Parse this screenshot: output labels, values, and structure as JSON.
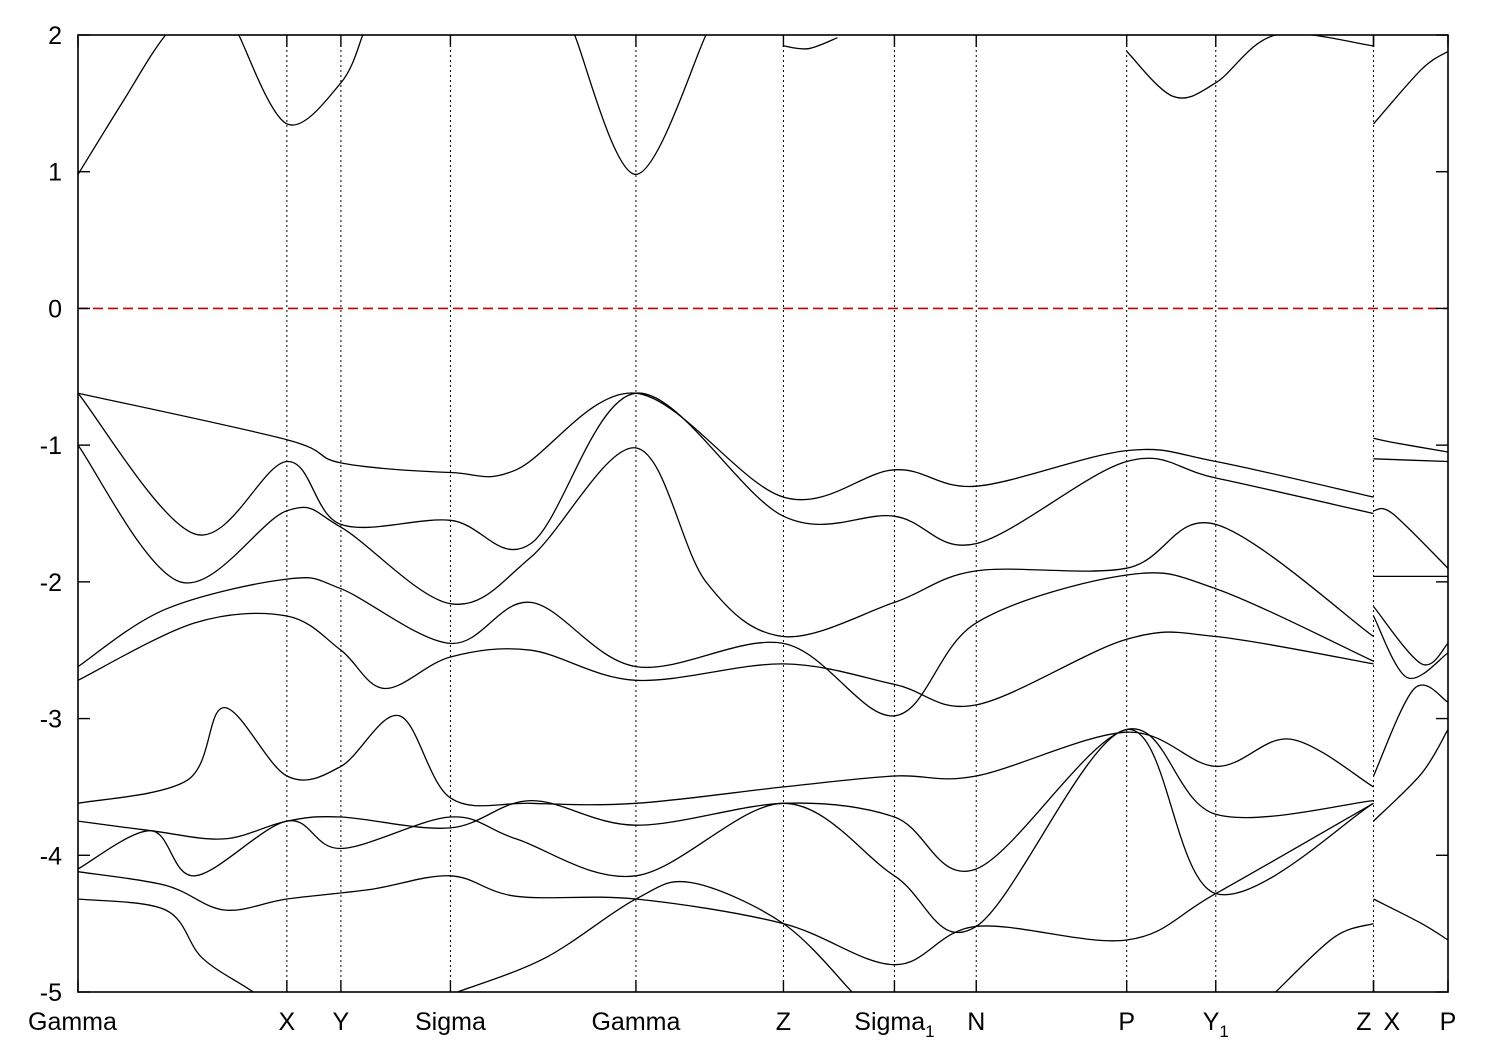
{
  "chart_data": {
    "type": "line",
    "title": "",
    "xlabel": "",
    "ylabel": "",
    "ylim": [
      -5,
      2
    ],
    "yticks": [
      2,
      1,
      0,
      -1,
      -2,
      -3,
      -4,
      -5
    ],
    "ytick_labels": [
      "2",
      "1",
      "0",
      "-1",
      "-2",
      "-3",
      "-4",
      "-5"
    ],
    "xlim": [
      0,
      9.38
    ],
    "grid": "dotted vertical lines at high-symmetry points",
    "high_symmetry_points": [
      {
        "label": "Gamma",
        "sub": "",
        "x": 0.0
      },
      {
        "label": "X",
        "sub": "",
        "x": 1.43
      },
      {
        "label": "Y",
        "sub": "",
        "x": 1.8
      },
      {
        "label": "Sigma",
        "sub": "",
        "x": 2.55
      },
      {
        "label": "Gamma",
        "sub": "",
        "x": 3.82
      },
      {
        "label": "Z",
        "sub": "",
        "x": 4.83
      },
      {
        "label": "Sigma",
        "sub": "1",
        "x": 5.59
      },
      {
        "label": "N",
        "sub": "",
        "x": 6.15
      },
      {
        "label": "P",
        "sub": "",
        "x": 7.18
      },
      {
        "label": "Y",
        "sub": "1",
        "x": 7.79
      },
      {
        "label": "Z",
        "sub": "",
        "x": 8.87
      },
      {
        "label": "X",
        "sub": "",
        "x": 8.87
      },
      {
        "label": "P",
        "sub": "",
        "x": 9.38
      }
    ],
    "fermi_level": {
      "y": 0,
      "color": "#cc0000",
      "style": "dashed"
    },
    "colors": {
      "bands": "#000000",
      "fermi": "#cc0000",
      "grid": "#000000"
    },
    "series": [
      {
        "x": [
          0.0,
          0.3,
          0.6,
          0.9,
          1.43,
          1.8,
          2.55,
          3.0,
          3.82,
          4.83,
          5.59,
          6.15,
          7.18,
          7.79,
          8.87
        ],
        "values": [
          0.98,
          1.5,
          2.0,
          2.3,
          2.3,
          2.3,
          2.4,
          2.3,
          2.3,
          2.3,
          2.3,
          2.3,
          2.3,
          2.3,
          2.3
        ]
      },
      {
        "x": [
          1.1,
          1.43,
          1.8,
          1.95
        ],
        "values": [
          2.0,
          1.35,
          1.65,
          2.0
        ]
      },
      {
        "x": [
          3.4,
          3.82,
          4.3
        ],
        "values": [
          2.0,
          0.98,
          2.0
        ]
      },
      {
        "x": [
          4.83,
          5.0,
          5.2
        ],
        "values": [
          1.92,
          1.9,
          1.98
        ]
      },
      {
        "x": [
          7.18,
          7.5,
          7.79,
          8.2,
          8.87
        ],
        "values": [
          1.88,
          1.55,
          1.65,
          2.0,
          1.92
        ]
      },
      {
        "x": [
          8.87,
          9.2,
          9.38
        ],
        "values": [
          1.35,
          1.75,
          1.88
        ]
      },
      {
        "x": [
          0.0,
          1.43,
          1.8,
          2.55,
          3.0,
          3.82,
          4.83,
          5.59,
          6.15,
          7.18,
          7.79,
          8.87
        ],
        "values": [
          -0.62,
          -0.96,
          -1.13,
          -1.2,
          -1.18,
          -0.62,
          -1.38,
          -1.18,
          -1.3,
          -1.04,
          -1.12,
          -1.38
        ]
      },
      {
        "x": [
          0.0,
          0.8,
          1.43,
          1.8,
          2.55,
          3.1,
          3.82,
          4.83,
          5.59,
          6.15,
          7.18,
          7.79,
          8.87
        ],
        "values": [
          -0.62,
          -1.65,
          -1.12,
          -1.58,
          -1.55,
          -1.72,
          -0.62,
          -1.52,
          -1.52,
          -1.72,
          -1.12,
          -1.24,
          -1.5
        ]
      },
      {
        "x": [
          0.0,
          0.7,
          1.43,
          1.8,
          2.55,
          3.1,
          3.82,
          4.3,
          4.83,
          5.59,
          6.15,
          7.18,
          7.79,
          8.87
        ],
        "values": [
          -1.0,
          -2.0,
          -1.48,
          -1.6,
          -2.16,
          -1.82,
          -1.02,
          -2.0,
          -2.4,
          -2.15,
          -1.92,
          -1.9,
          -1.58,
          -2.4
        ]
      },
      {
        "x": [
          0.0,
          0.6,
          1.43,
          1.8,
          2.55,
          3.1,
          3.82,
          4.83,
          5.59,
          6.15,
          7.18,
          7.79,
          8.87
        ],
        "values": [
          -2.62,
          -2.2,
          -1.98,
          -2.05,
          -2.45,
          -2.15,
          -2.62,
          -2.45,
          -2.98,
          -2.3,
          -1.95,
          -2.05,
          -2.58
        ]
      },
      {
        "x": [
          0.0,
          0.8,
          1.43,
          1.8,
          2.1,
          2.55,
          3.1,
          3.82,
          4.83,
          5.59,
          6.15,
          7.18,
          7.79,
          8.87
        ],
        "values": [
          -2.72,
          -2.3,
          -2.25,
          -2.5,
          -2.78,
          -2.55,
          -2.5,
          -2.72,
          -2.6,
          -2.75,
          -2.9,
          -2.42,
          -2.4,
          -2.6
        ]
      },
      {
        "x": [
          0.0,
          0.75,
          1.0,
          1.43,
          1.8,
          2.2,
          2.55,
          3.1,
          3.82,
          4.83,
          5.59,
          6.15,
          7.18,
          7.79,
          8.3,
          8.87
        ],
        "values": [
          -3.62,
          -3.45,
          -2.92,
          -3.42,
          -3.35,
          -2.98,
          -3.58,
          -3.62,
          -3.62,
          -3.5,
          -3.42,
          -3.42,
          -3.1,
          -3.35,
          -3.15,
          -3.5
        ]
      },
      {
        "x": [
          0.0,
          0.5,
          1.0,
          1.43,
          1.8,
          2.55,
          3.1,
          3.82,
          4.83,
          5.59,
          6.15,
          7.18,
          7.79,
          8.87
        ],
        "values": [
          -3.75,
          -3.82,
          -3.88,
          -3.75,
          -3.72,
          -3.8,
          -3.6,
          -3.78,
          -3.62,
          -3.72,
          -4.1,
          -3.08,
          -3.7,
          -3.6
        ]
      },
      {
        "x": [
          0.0,
          0.5,
          0.8,
          1.43,
          1.8,
          2.55,
          3.0,
          3.82,
          4.83,
          5.59,
          6.15,
          7.18,
          7.79,
          8.87
        ],
        "values": [
          -4.1,
          -3.82,
          -4.15,
          -3.75,
          -3.95,
          -3.72,
          -3.88,
          -4.15,
          -3.62,
          -4.15,
          -4.52,
          -3.08,
          -4.28,
          -3.62
        ]
      },
      {
        "x": [
          0.0,
          0.6,
          1.0,
          1.43,
          2.0,
          2.55,
          3.0,
          3.82,
          4.83,
          5.59,
          6.15,
          7.18,
          7.79,
          8.87
        ],
        "values": [
          -4.12,
          -4.22,
          -4.4,
          -4.32,
          -4.25,
          -4.15,
          -4.3,
          -4.32,
          -4.5,
          -4.8,
          -4.52,
          -4.62,
          -4.28,
          -3.62
        ]
      },
      {
        "x": [
          0.0,
          0.6,
          0.85,
          1.2,
          1.6
        ],
        "values": [
          -4.32,
          -4.4,
          -4.75,
          -5.0,
          -5.3
        ]
      },
      {
        "x": [
          2.6,
          3.2,
          3.82,
          4.2,
          4.83,
          5.3
        ],
        "values": [
          -5.0,
          -4.75,
          -4.32,
          -4.2,
          -4.5,
          -5.0
        ]
      },
      {
        "x": [
          8.2,
          8.6,
          8.87
        ],
        "values": [
          -5.0,
          -4.6,
          -4.5
        ]
      },
      {
        "x": [
          8.87,
          9.0,
          9.38
        ],
        "values": [
          -0.95,
          -0.98,
          -1.05
        ]
      },
      {
        "x": [
          8.87,
          9.38
        ],
        "values": [
          -1.1,
          -1.12
        ]
      },
      {
        "x": [
          8.87,
          9.0,
          9.38
        ],
        "values": [
          -1.48,
          -1.5,
          -1.9
        ]
      },
      {
        "x": [
          8.87,
          9.38
        ],
        "values": [
          -1.96,
          -1.96
        ]
      },
      {
        "x": [
          8.87,
          9.2,
          9.38
        ],
        "values": [
          -2.18,
          -2.6,
          -2.45
        ]
      },
      {
        "x": [
          8.87,
          9.1,
          9.38
        ],
        "values": [
          -2.25,
          -2.7,
          -2.52
        ]
      },
      {
        "x": [
          8.87,
          9.15,
          9.38
        ],
        "values": [
          -3.42,
          -2.78,
          -2.88
        ]
      },
      {
        "x": [
          8.87,
          9.2,
          9.38
        ],
        "values": [
          -3.75,
          -3.4,
          -3.08
        ]
      },
      {
        "x": [
          8.87,
          9.2,
          9.38
        ],
        "values": [
          -4.32,
          -4.5,
          -4.62
        ]
      }
    ]
  }
}
